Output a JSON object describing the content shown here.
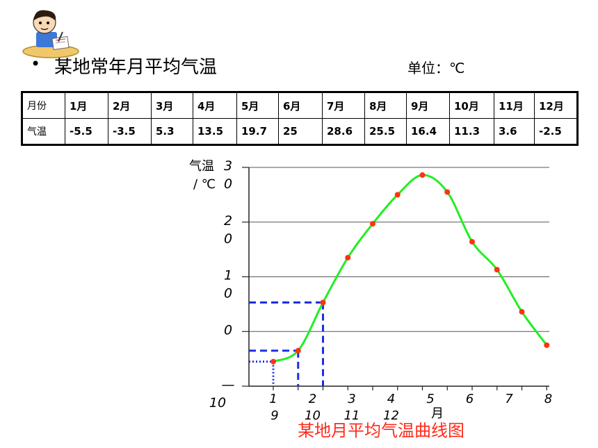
{
  "heading": {
    "bullet": "•",
    "title": "某地常年月平均气温",
    "unit": "单位：℃"
  },
  "table": {
    "row_labels": [
      "月份",
      "气温"
    ],
    "months": [
      "1月",
      "2月",
      "3月",
      "4月",
      "5月",
      "6月",
      "7月",
      "8月",
      "9月",
      "10月",
      "11月",
      "12月"
    ],
    "temps": [
      "-5.5",
      "-3.5",
      "5.3",
      "13.5",
      "19.7",
      "25",
      "28.6",
      "25.5",
      "16.4",
      "11.3",
      "3.6",
      "-2.5"
    ]
  },
  "chart_data": {
    "type": "line",
    "ylabel_lines": [
      "气温",
      "/ ℃"
    ],
    "xlabel": "月",
    "ylim": [
      -10,
      30
    ],
    "y_ticks": [
      {
        "value": 30,
        "line1": "3",
        "line2": "0"
      },
      {
        "value": 20,
        "line1": "2",
        "line2": "0"
      },
      {
        "value": 10,
        "line1": "1",
        "line2": "0"
      },
      {
        "value": 0,
        "line1": "0",
        "line2": ""
      },
      {
        "value": -10,
        "line1": "—",
        "line2": "10"
      }
    ],
    "x_ticks": [
      {
        "pos": 1,
        "top": "1",
        "bottom": "9"
      },
      {
        "pos": 2,
        "top": "2",
        "bottom": "10"
      },
      {
        "pos": 3,
        "top": "3",
        "bottom": "11"
      },
      {
        "pos": 4,
        "top": "4",
        "bottom": "12"
      },
      {
        "pos": 5,
        "top": "5",
        "bottom": ""
      },
      {
        "pos": 6,
        "top": "6",
        "bottom": ""
      },
      {
        "pos": 7,
        "top": "7",
        "bottom": ""
      },
      {
        "pos": 8,
        "top": "8",
        "bottom": ""
      }
    ],
    "series": [
      {
        "x": [
          1,
          2,
          3,
          4,
          5,
          6,
          7,
          8,
          9,
          10,
          11,
          12
        ],
        "values": [
          -5.5,
          -3.5,
          5.3,
          13.5,
          19.7,
          25,
          28.6,
          25.5,
          16.4,
          11.3,
          3.6,
          -2.5
        ]
      }
    ],
    "highlight_points": [
      {
        "month": 1,
        "value": -5.5,
        "style": "dotted"
      },
      {
        "month": 2,
        "value": -3.5,
        "style": "dashed"
      },
      {
        "month": 3,
        "value": 5.3,
        "style": "dashed"
      }
    ],
    "grid": true,
    "caption": "某地月平均气温曲线图",
    "colors": {
      "line": "#22ee22",
      "points": "#ff3311",
      "guides": "#1a2ee6",
      "caption": "#ff2a1a"
    }
  }
}
